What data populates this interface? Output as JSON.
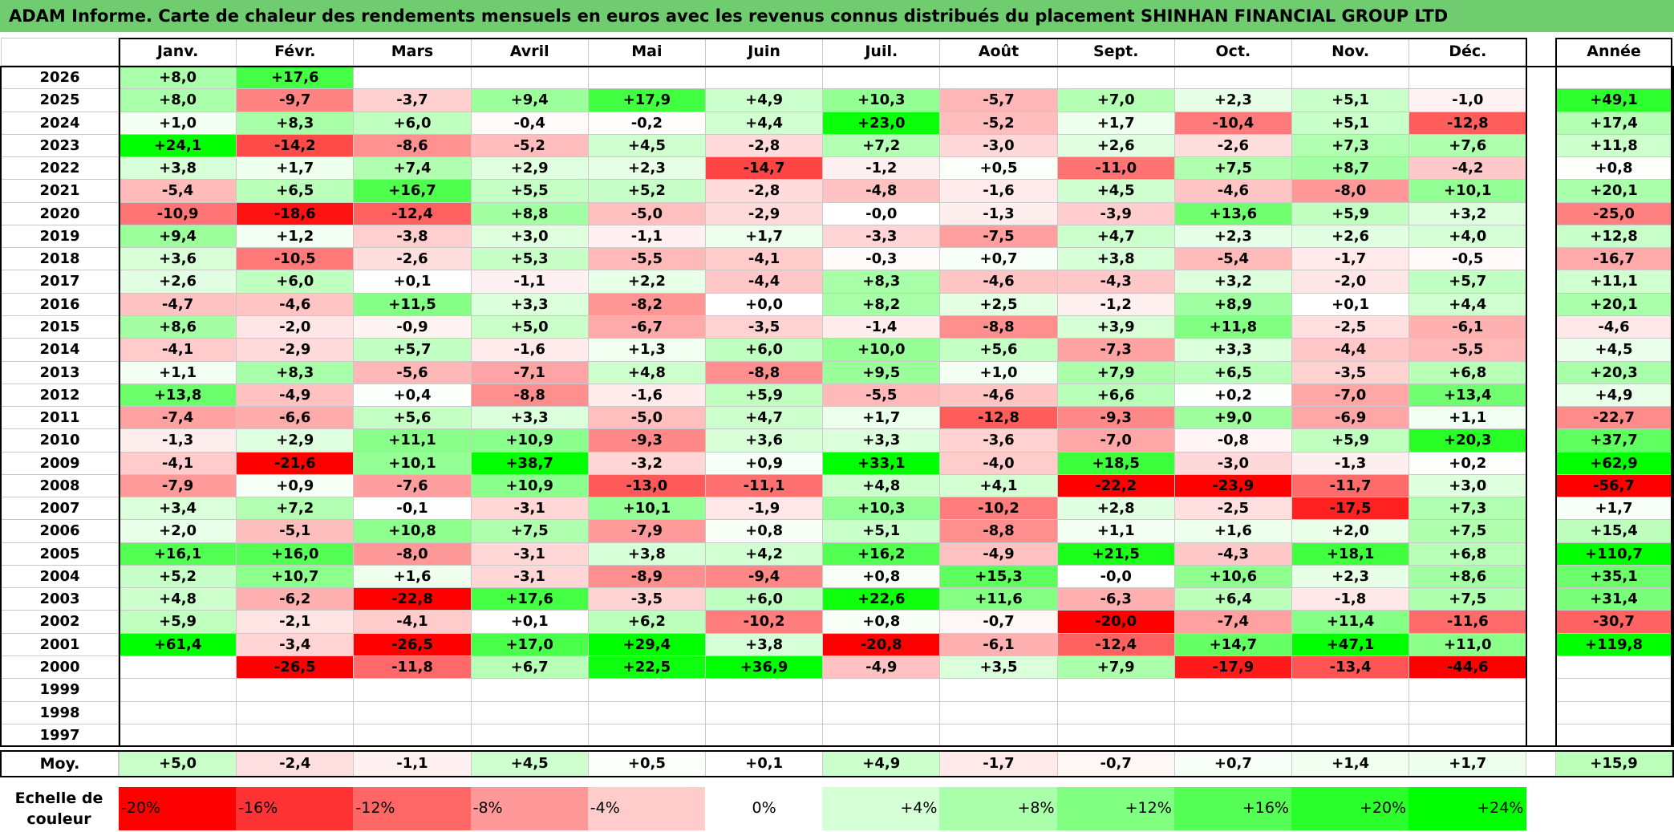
{
  "title": "ADAM Informe. Carte de chaleur des rendements mensuels en euros avec les revenus connus distribués du placement SHINHAN FINANCIAL GROUP LTD",
  "chart_data": {
    "type": "heatmap",
    "title": "ADAM Informe. Carte de chaleur des rendements mensuels en euros avec les revenus connus distribués du placement SHINHAN FINANCIAL GROUP LTD",
    "months": [
      "Janv.",
      "Févr.",
      "Mars",
      "Avril",
      "Mai",
      "Juin",
      "Juil.",
      "Août",
      "Sept.",
      "Oct.",
      "Nov.",
      "Déc."
    ],
    "year_header": "Année",
    "rows": [
      {
        "year": "2026",
        "values": [
          8.0,
          17.6,
          null,
          null,
          null,
          null,
          null,
          null,
          null,
          null,
          null,
          null
        ],
        "annual": null
      },
      {
        "year": "2025",
        "values": [
          8.0,
          -9.7,
          -3.7,
          9.4,
          17.9,
          4.9,
          10.3,
          -5.7,
          7.0,
          2.3,
          5.1,
          -1.0
        ],
        "annual": 49.1
      },
      {
        "year": "2024",
        "values": [
          1.0,
          8.3,
          6.0,
          -0.4,
          -0.2,
          4.4,
          23.0,
          -5.2,
          1.7,
          -10.4,
          5.1,
          -12.8
        ],
        "annual": 17.4
      },
      {
        "year": "2023",
        "values": [
          24.1,
          -14.2,
          -8.6,
          -5.2,
          4.5,
          -2.8,
          7.2,
          -3.0,
          2.6,
          -2.6,
          7.3,
          7.6
        ],
        "annual": 11.8
      },
      {
        "year": "2022",
        "values": [
          3.8,
          1.7,
          7.4,
          2.9,
          2.3,
          -14.7,
          -1.2,
          0.5,
          -11.0,
          7.5,
          8.7,
          -4.2
        ],
        "annual": 0.8
      },
      {
        "year": "2021",
        "values": [
          -5.4,
          6.5,
          16.7,
          5.5,
          5.2,
          -2.8,
          -4.8,
          -1.6,
          4.5,
          -4.6,
          -8.0,
          10.1
        ],
        "annual": 20.1
      },
      {
        "year": "2020",
        "values": [
          -10.9,
          -18.6,
          -12.4,
          8.8,
          -5.0,
          -2.9,
          "-0,0",
          -1.3,
          -3.9,
          13.6,
          5.9,
          3.2
        ],
        "annual": -25.0
      },
      {
        "year": "2019",
        "values": [
          9.4,
          1.2,
          -3.8,
          3.0,
          -1.1,
          1.7,
          -3.3,
          -7.5,
          4.7,
          2.3,
          2.6,
          4.0
        ],
        "annual": 12.8
      },
      {
        "year": "2018",
        "values": [
          3.6,
          -10.5,
          -2.6,
          5.3,
          -5.5,
          -4.1,
          -0.3,
          0.7,
          3.8,
          -5.4,
          -1.7,
          -0.5
        ],
        "annual": -16.7
      },
      {
        "year": "2017",
        "values": [
          2.6,
          6.0,
          0.1,
          -1.1,
          2.2,
          -4.4,
          8.3,
          -4.6,
          -4.3,
          3.2,
          -2.0,
          5.7
        ],
        "annual": 11.1
      },
      {
        "year": "2016",
        "values": [
          -4.7,
          -4.6,
          11.5,
          3.3,
          -8.2,
          "+0,0",
          8.2,
          2.5,
          -1.2,
          8.9,
          0.1,
          4.4
        ],
        "annual": 20.1
      },
      {
        "year": "2015",
        "values": [
          8.6,
          -2.0,
          -0.9,
          5.0,
          -6.7,
          -3.5,
          -1.4,
          -8.8,
          3.9,
          11.8,
          -2.5,
          -6.1
        ],
        "annual": -4.6
      },
      {
        "year": "2014",
        "values": [
          -4.1,
          -2.9,
          5.7,
          -1.6,
          1.3,
          6.0,
          10.0,
          5.6,
          -7.3,
          3.3,
          -4.4,
          -5.5
        ],
        "annual": 4.5
      },
      {
        "year": "2013",
        "values": [
          1.1,
          8.3,
          -5.6,
          -7.1,
          4.8,
          -8.8,
          9.5,
          1.0,
          7.9,
          6.5,
          -3.5,
          6.8
        ],
        "annual": 20.3
      },
      {
        "year": "2012",
        "values": [
          13.8,
          -4.9,
          0.4,
          -8.8,
          -1.6,
          5.9,
          -5.5,
          -4.6,
          6.6,
          0.2,
          -7.0,
          13.4
        ],
        "annual": 4.9
      },
      {
        "year": "2011",
        "values": [
          -7.4,
          -6.6,
          5.6,
          3.3,
          -5.0,
          4.7,
          1.7,
          -12.8,
          -9.3,
          9.0,
          -6.9,
          1.1
        ],
        "annual": -22.7
      },
      {
        "year": "2010",
        "values": [
          -1.3,
          2.9,
          11.1,
          10.9,
          -9.3,
          3.6,
          3.3,
          -3.6,
          -7.0,
          -0.8,
          5.9,
          20.3
        ],
        "annual": 37.7
      },
      {
        "year": "2009",
        "values": [
          -4.1,
          -21.6,
          10.1,
          38.7,
          -3.2,
          0.9,
          33.1,
          -4.0,
          18.5,
          -3.0,
          -1.3,
          0.2
        ],
        "annual": 62.9
      },
      {
        "year": "2008",
        "values": [
          -7.9,
          0.9,
          -7.6,
          10.9,
          -13.0,
          -11.1,
          4.8,
          4.1,
          -22.2,
          -23.9,
          -11.7,
          3.0
        ],
        "annual": -56.7
      },
      {
        "year": "2007",
        "values": [
          3.4,
          7.2,
          -0.1,
          -3.1,
          10.1,
          -1.9,
          10.3,
          -10.2,
          2.8,
          -2.5,
          -17.5,
          7.3
        ],
        "annual": 1.7
      },
      {
        "year": "2006",
        "values": [
          2.0,
          -5.1,
          10.8,
          7.5,
          -7.9,
          0.8,
          5.1,
          -8.8,
          1.1,
          1.6,
          2.0,
          7.5
        ],
        "annual": 15.4
      },
      {
        "year": "2005",
        "values": [
          16.1,
          16.0,
          -8.0,
          -3.1,
          3.8,
          4.2,
          16.2,
          -4.9,
          21.5,
          -4.3,
          18.1,
          6.8
        ],
        "annual": 110.7
      },
      {
        "year": "2004",
        "values": [
          5.2,
          10.7,
          1.6,
          -3.1,
          -8.9,
          -9.4,
          0.8,
          15.3,
          "-0,0",
          10.6,
          2.3,
          8.6
        ],
        "annual": 35.1
      },
      {
        "year": "2003",
        "values": [
          4.8,
          -6.2,
          -22.8,
          17.6,
          -3.5,
          6.0,
          22.6,
          11.6,
          -6.3,
          6.4,
          -1.8,
          7.5
        ],
        "annual": 31.4
      },
      {
        "year": "2002",
        "values": [
          5.9,
          -2.1,
          -4.1,
          0.1,
          6.2,
          -10.2,
          0.8,
          -0.7,
          -20.0,
          -7.4,
          11.4,
          -11.6
        ],
        "annual": -30.7
      },
      {
        "year": "2001",
        "values": [
          61.4,
          -3.4,
          -26.5,
          17.0,
          29.4,
          3.8,
          -20.8,
          -6.1,
          -12.4,
          14.7,
          47.1,
          11.0
        ],
        "annual": 119.8
      },
      {
        "year": "2000",
        "values": [
          null,
          -26.5,
          -11.8,
          6.7,
          22.5,
          36.9,
          -4.9,
          3.5,
          7.9,
          -17.9,
          -13.4,
          -44.6
        ],
        "annual": null
      },
      {
        "year": "1999",
        "values": [
          null,
          null,
          null,
          null,
          null,
          null,
          null,
          null,
          null,
          null,
          null,
          null
        ],
        "annual": null
      },
      {
        "year": "1998",
        "values": [
          null,
          null,
          null,
          null,
          null,
          null,
          null,
          null,
          null,
          null,
          null,
          null
        ],
        "annual": null
      },
      {
        "year": "1997",
        "values": [
          null,
          null,
          null,
          null,
          null,
          null,
          null,
          null,
          null,
          null,
          null,
          null
        ],
        "annual": null
      }
    ],
    "average": {
      "label": "Moy.",
      "values": [
        5.0,
        -2.4,
        -1.1,
        4.5,
        0.5,
        0.1,
        4.9,
        -1.7,
        -0.7,
        0.7,
        1.4,
        1.7
      ],
      "annual": 15.9
    },
    "color_scale": {
      "label_lines": [
        "Echelle de",
        "couleur"
      ],
      "steps": [
        {
          "label": "-20%",
          "value": -20
        },
        {
          "label": "-16%",
          "value": -16
        },
        {
          "label": "-12%",
          "value": -12
        },
        {
          "label": "-8%",
          "value": -8
        },
        {
          "label": "-4%",
          "value": -4
        },
        {
          "label": "0%",
          "value": 0
        },
        {
          "label": "+4%",
          "value": 4
        },
        {
          "label": "+8%",
          "value": 8
        },
        {
          "label": "+12%",
          "value": 12
        },
        {
          "label": "+16%",
          "value": 16
        },
        {
          "label": "+20%",
          "value": 20
        },
        {
          "label": "+24%",
          "value": 24
        }
      ]
    },
    "colors": {
      "red_max": "#ff0000",
      "green_max": "#00ff00",
      "neutral": "#ffffff",
      "title_bar": "#6fcd6f"
    }
  }
}
